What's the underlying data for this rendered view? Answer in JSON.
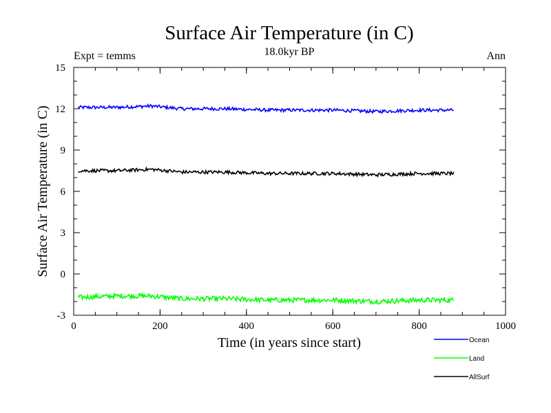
{
  "chart_data": {
    "type": "line",
    "title": "Surface Air Temperature (in C)",
    "subtitle": "18.0kyr BP",
    "left_label": "Expt = temms",
    "right_label": "Ann",
    "xlabel": "Time (in years since start)",
    "ylabel": "Surface Air Temperature (in C)",
    "xlim": [
      0,
      1000
    ],
    "ylim": [
      -3,
      15
    ],
    "xticks": [
      "0",
      "200",
      "400",
      "600",
      "800",
      "1000"
    ],
    "yticks": [
      "-3",
      "0",
      "3",
      "6",
      "9",
      "12",
      "15"
    ],
    "grid": false,
    "legend_position": "bottom-right",
    "x_range": [
      10,
      880
    ],
    "series": [
      {
        "name": "Ocean",
        "color": "#0000ff",
        "x": [
          10,
          100,
          180,
          250,
          350,
          450,
          500,
          600,
          700,
          800,
          880
        ],
        "values": [
          12.1,
          12.1,
          12.2,
          12.0,
          12.0,
          11.9,
          11.9,
          11.9,
          11.8,
          11.9,
          11.9
        ],
        "noise": 0.12
      },
      {
        "name": "Land",
        "color": "#00ff00",
        "x": [
          10,
          100,
          180,
          250,
          350,
          450,
          500,
          600,
          700,
          800,
          880
        ],
        "values": [
          -1.7,
          -1.6,
          -1.6,
          -1.8,
          -1.8,
          -1.9,
          -1.9,
          -1.9,
          -2.0,
          -1.9,
          -1.9
        ],
        "noise": 0.18
      },
      {
        "name": "AllSurf",
        "color": "#000000",
        "x": [
          10,
          100,
          180,
          250,
          350,
          450,
          500,
          600,
          700,
          800,
          880
        ],
        "values": [
          7.5,
          7.5,
          7.6,
          7.4,
          7.4,
          7.3,
          7.3,
          7.3,
          7.2,
          7.3,
          7.3
        ],
        "noise": 0.12
      }
    ]
  }
}
